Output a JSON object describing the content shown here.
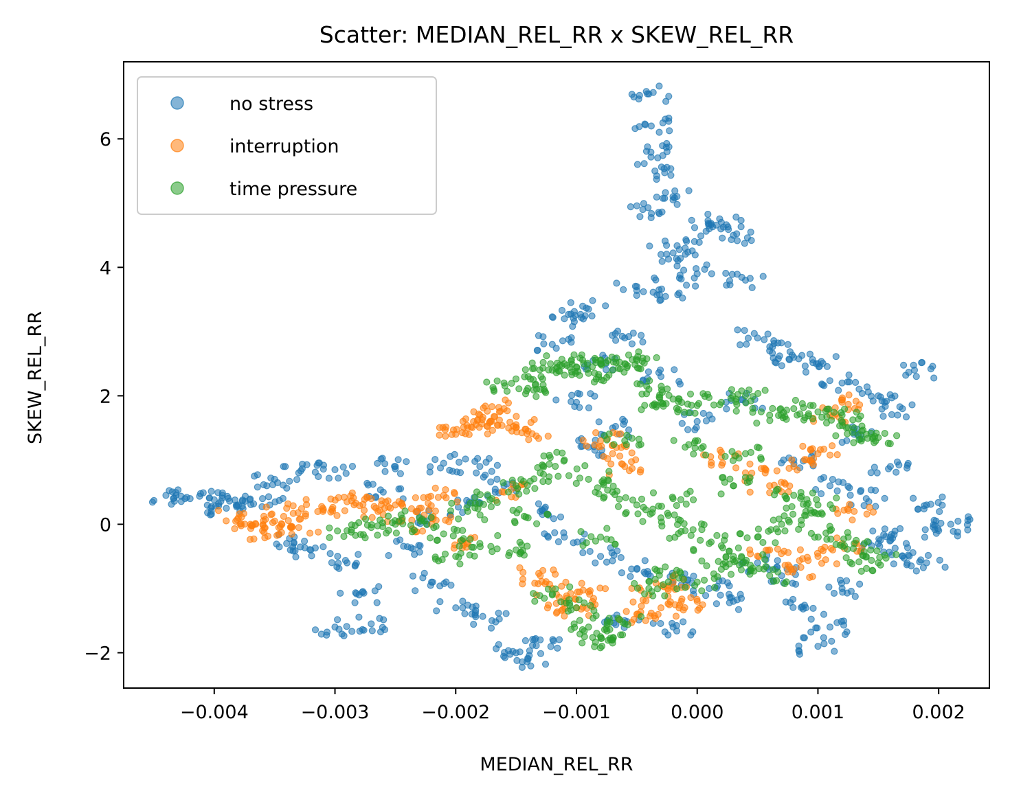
{
  "chart_data": {
    "type": "scatter",
    "title": "Scatter: MEDIAN_REL_RR x SKEW_REL_RR",
    "xlabel": "MEDIAN_REL_RR",
    "ylabel": "SKEW_REL_RR",
    "xlim": [
      -0.00475,
      0.00242
    ],
    "ylim": [
      -2.55,
      7.2
    ],
    "xticks": [
      -0.004,
      -0.003,
      -0.002,
      -0.001,
      0.0,
      0.001,
      0.002
    ],
    "xtick_labels": [
      "−0.004",
      "−0.003",
      "−0.002",
      "−0.001",
      "0.000",
      "0.001",
      "0.002"
    ],
    "yticks": [
      -2,
      0,
      2,
      4,
      6
    ],
    "ytick_labels": [
      "−2",
      "0",
      "2",
      "4",
      "6"
    ],
    "grid": false,
    "legend_position": "top-left",
    "series": [
      {
        "name": "no stress",
        "color": "#1f77b4",
        "points": [
          [
            -0.0044,
            0.45
          ],
          [
            -0.0042,
            0.4
          ],
          [
            -0.004,
            0.38
          ],
          [
            -0.0038,
            0.3
          ],
          [
            -0.0036,
            0.4
          ],
          [
            -0.0035,
            0.7
          ],
          [
            -0.0034,
            -0.3
          ],
          [
            -0.0032,
            -0.4
          ],
          [
            -0.003,
            0.85
          ],
          [
            -0.0029,
            -0.6
          ],
          [
            -0.0028,
            -1.1
          ],
          [
            -0.003,
            -1.6
          ],
          [
            -0.0027,
            -1.55
          ],
          [
            -0.0025,
            0.9
          ],
          [
            -0.0024,
            -0.35
          ],
          [
            -0.0022,
            -0.9
          ],
          [
            -0.002,
            -1.3
          ],
          [
            -0.0018,
            0.9
          ],
          [
            -0.0017,
            -1.5
          ],
          [
            -0.0015,
            -2.0
          ],
          [
            -0.0014,
            -2.1
          ],
          [
            -0.0013,
            -1.8
          ],
          [
            -0.0012,
            2.8
          ],
          [
            -0.0011,
            3.2
          ],
          [
            -0.001,
            1.9
          ],
          [
            -0.0009,
            3.35
          ],
          [
            -0.0008,
            2.5
          ],
          [
            -0.0007,
            1.5
          ],
          [
            -0.0006,
            2.9
          ],
          [
            -0.0005,
            3.7
          ],
          [
            -0.00045,
            4.9
          ],
          [
            -0.0004,
            6.7
          ],
          [
            -0.00038,
            6.2
          ],
          [
            -0.00035,
            5.5
          ],
          [
            -0.0003,
            4.2
          ],
          [
            -0.00025,
            5.8
          ],
          [
            -0.0002,
            5.1
          ],
          [
            -0.00015,
            3.6
          ],
          [
            -0.0001,
            4.3
          ],
          [
            0.0,
            3.9
          ],
          [
            0.0001,
            4.6
          ],
          [
            0.0002,
            4.7
          ],
          [
            0.0003,
            4.5
          ],
          [
            0.0004,
            3.8
          ],
          [
            0.0005,
            2.9
          ],
          [
            0.0006,
            2.7
          ],
          [
            0.0008,
            2.6
          ],
          [
            0.001,
            2.5
          ],
          [
            0.0012,
            2.2
          ],
          [
            0.0013,
            1.4
          ],
          [
            0.0015,
            2.0
          ],
          [
            0.0016,
            0.9
          ],
          [
            0.0017,
            1.8
          ],
          [
            0.0018,
            2.4
          ],
          [
            0.0019,
            0.3
          ],
          [
            0.002,
            -0.1
          ],
          [
            0.0021,
            0.0
          ],
          [
            0.0019,
            -0.6
          ],
          [
            0.0017,
            -0.5
          ],
          [
            0.0015,
            -0.3
          ],
          [
            0.0012,
            -1.0
          ],
          [
            0.0011,
            -1.6
          ],
          [
            0.001,
            -1.9
          ],
          [
            0.0009,
            -1.3
          ],
          [
            0.0007,
            -0.8
          ],
          [
            0.0005,
            -0.6
          ],
          [
            0.0003,
            -1.2
          ],
          [
            0.0001,
            -1.0
          ],
          [
            -0.0002,
            -0.9
          ],
          [
            -0.0005,
            -0.7
          ],
          [
            -0.0008,
            -0.5
          ],
          [
            -0.0011,
            -0.2
          ],
          [
            -0.0013,
            0.2
          ],
          [
            -0.0016,
            0.6
          ],
          [
            -0.0019,
            0.3
          ],
          [
            -0.0022,
            0.1
          ],
          [
            -0.0026,
            0.5
          ],
          [
            -0.0039,
            0.25
          ],
          [
            -0.0033,
            0.8
          ],
          [
            -0.0021,
            0.95
          ],
          [
            -0.0009,
            1.2
          ],
          [
            -0.0003,
            2.3
          ],
          [
            0.0,
            1.6
          ],
          [
            0.0004,
            1.9
          ],
          [
            0.0008,
            1.0
          ],
          [
            0.0011,
            0.6
          ],
          [
            0.0014,
            0.4
          ],
          [
            0.0016,
            -0.2
          ],
          [
            -0.0006,
            -1.5
          ],
          [
            -0.0002,
            -1.6
          ]
        ]
      },
      {
        "name": "interruption",
        "color": "#ff7f0e",
        "points": [
          [
            -0.0038,
            0.1
          ],
          [
            -0.0037,
            0.0
          ],
          [
            -0.0035,
            0.05
          ],
          [
            -0.0033,
            -0.05
          ],
          [
            -0.0031,
            0.2
          ],
          [
            -0.0029,
            0.35
          ],
          [
            -0.0027,
            0.4
          ],
          [
            -0.0025,
            0.3
          ],
          [
            -0.0023,
            0.25
          ],
          [
            -0.0021,
            0.45
          ],
          [
            -0.002,
            1.4
          ],
          [
            -0.0019,
            1.5
          ],
          [
            -0.0018,
            1.7
          ],
          [
            -0.0017,
            1.6
          ],
          [
            -0.0016,
            1.8
          ],
          [
            -0.0015,
            1.55
          ],
          [
            -0.0014,
            1.45
          ],
          [
            -0.0013,
            -0.8
          ],
          [
            -0.0012,
            -1.0
          ],
          [
            -0.0011,
            -1.2
          ],
          [
            -0.001,
            -1.3
          ],
          [
            -0.0009,
            -1.05
          ],
          [
            -0.0008,
            1.3
          ],
          [
            -0.0007,
            1.1
          ],
          [
            -0.0006,
            0.9
          ],
          [
            -0.0005,
            -1.4
          ],
          [
            -0.0004,
            -1.1
          ],
          [
            -0.0003,
            -1.3
          ],
          [
            -0.0002,
            -0.9
          ],
          [
            0.0,
            -1.2
          ],
          [
            0.0002,
            1.05
          ],
          [
            0.0004,
            0.8
          ],
          [
            0.0006,
            0.6
          ],
          [
            0.0008,
            0.9
          ],
          [
            0.001,
            1.1
          ],
          [
            0.0011,
            1.7
          ],
          [
            0.0012,
            1.9
          ],
          [
            0.0013,
            0.2
          ],
          [
            0.0012,
            -0.3
          ],
          [
            0.001,
            -0.5
          ],
          [
            0.0008,
            -0.7
          ],
          [
            0.0006,
            -0.4
          ],
          [
            -0.0016,
            0.5
          ],
          [
            -0.0019,
            -0.3
          ],
          [
            -0.0022,
            0.0
          ],
          [
            -0.0026,
            0.15
          ],
          [
            -0.0034,
            0.25
          ],
          [
            -0.0036,
            -0.1
          ]
        ]
      },
      {
        "name": "time pressure",
        "color": "#2ca02c",
        "points": [
          [
            -0.0016,
            2.2
          ],
          [
            -0.0014,
            2.3
          ],
          [
            -0.0013,
            2.1
          ],
          [
            -0.0012,
            2.4
          ],
          [
            -0.0011,
            2.5
          ],
          [
            -0.001,
            2.45
          ],
          [
            -0.0009,
            2.35
          ],
          [
            -0.0008,
            2.55
          ],
          [
            -0.0007,
            2.4
          ],
          [
            -0.0006,
            2.5
          ],
          [
            -0.0005,
            2.55
          ],
          [
            -0.0004,
            2.1
          ],
          [
            -0.0003,
            1.9
          ],
          [
            -0.0002,
            1.95
          ],
          [
            0.0,
            1.85
          ],
          [
            0.0002,
            1.9
          ],
          [
            0.0004,
            2.0
          ],
          [
            0.0006,
            1.7
          ],
          [
            0.0008,
            1.8
          ],
          [
            0.001,
            1.75
          ],
          [
            0.0012,
            1.7
          ],
          [
            0.0013,
            1.5
          ],
          [
            0.0014,
            1.4
          ],
          [
            0.0015,
            1.35
          ],
          [
            -0.0029,
            -0.1
          ],
          [
            -0.0027,
            -0.05
          ],
          [
            -0.0025,
            0.0
          ],
          [
            -0.0023,
            0.1
          ],
          [
            -0.0021,
            -0.15
          ],
          [
            -0.0019,
            0.2
          ],
          [
            -0.0017,
            0.4
          ],
          [
            -0.0015,
            0.6
          ],
          [
            -0.0013,
            0.8
          ],
          [
            -0.0011,
            1.0
          ],
          [
            -0.0009,
            0.7
          ],
          [
            -0.0007,
            0.5
          ],
          [
            -0.0005,
            0.3
          ],
          [
            -0.0003,
            0.1
          ],
          [
            -0.0001,
            -0.1
          ],
          [
            0.0001,
            -0.3
          ],
          [
            0.0003,
            -0.5
          ],
          [
            0.0005,
            -0.2
          ],
          [
            0.0007,
            0.0
          ],
          [
            0.0009,
            0.2
          ],
          [
            0.0011,
            -0.1
          ],
          [
            0.0013,
            -0.3
          ],
          [
            0.0014,
            -0.5
          ],
          [
            0.0015,
            -0.6
          ],
          [
            -0.0012,
            -1.1
          ],
          [
            -0.001,
            -1.3
          ],
          [
            -0.0009,
            -1.6
          ],
          [
            -0.0008,
            -1.75
          ],
          [
            -0.0007,
            -1.8
          ],
          [
            -0.0006,
            -1.55
          ],
          [
            -0.0004,
            -1.0
          ],
          [
            -0.0002,
            -0.8
          ],
          [
            0.0,
            -0.9
          ],
          [
            0.0002,
            -0.7
          ],
          [
            0.0004,
            -0.6
          ],
          [
            0.0006,
            -0.8
          ],
          [
            -0.0015,
            -0.4
          ],
          [
            -0.0018,
            -0.3
          ],
          [
            -0.002,
            -0.5
          ],
          [
            -0.0014,
            0.1
          ],
          [
            -0.0008,
            -0.2
          ],
          [
            -0.0002,
            0.4
          ],
          [
            0.0003,
            0.6
          ],
          [
            0.0008,
            0.45
          ],
          [
            0.001,
            0.3
          ],
          [
            -0.0006,
            1.3
          ],
          [
            -0.0001,
            1.2
          ],
          [
            0.0004,
            1.1
          ]
        ]
      }
    ]
  }
}
